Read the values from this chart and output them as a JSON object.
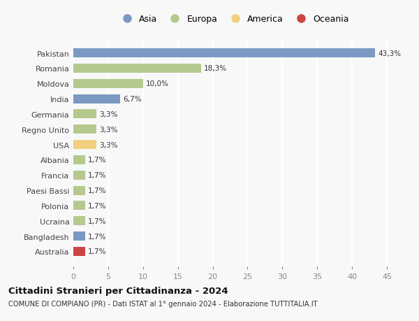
{
  "countries": [
    "Pakistan",
    "Romania",
    "Moldova",
    "India",
    "Germania",
    "Regno Unito",
    "USA",
    "Albania",
    "Francia",
    "Paesi Bassi",
    "Polonia",
    "Ucraina",
    "Bangladesh",
    "Australia"
  ],
  "values": [
    43.3,
    18.3,
    10.0,
    6.7,
    3.3,
    3.3,
    3.3,
    1.7,
    1.7,
    1.7,
    1.7,
    1.7,
    1.7,
    1.7
  ],
  "labels": [
    "43,3%",
    "18,3%",
    "10,0%",
    "6,7%",
    "3,3%",
    "3,3%",
    "3,3%",
    "1,7%",
    "1,7%",
    "1,7%",
    "1,7%",
    "1,7%",
    "1,7%",
    "1,7%"
  ],
  "colors": [
    "#7b99c2",
    "#b5c98e",
    "#b5c98e",
    "#7b99c2",
    "#b5c98e",
    "#b5c98e",
    "#f0d080",
    "#b5c98e",
    "#b5c98e",
    "#b5c98e",
    "#b5c98e",
    "#b5c98e",
    "#7b99c2",
    "#cc4444"
  ],
  "legend_labels": [
    "Asia",
    "Europa",
    "America",
    "Oceania"
  ],
  "legend_colors": [
    "#7b99c2",
    "#b5c98e",
    "#f0d080",
    "#cc4444"
  ],
  "title": "Cittadini Stranieri per Cittadinanza - 2024",
  "subtitle": "COMUNE DI COMPIANO (PR) - Dati ISTAT al 1° gennaio 2024 - Elaborazione TUTTITALIA.IT",
  "xlim": [
    0,
    46
  ],
  "xticks": [
    0,
    5,
    10,
    15,
    20,
    25,
    30,
    35,
    40,
    45
  ],
  "background_color": "#f8f8f8",
  "grid_color": "#ffffff"
}
